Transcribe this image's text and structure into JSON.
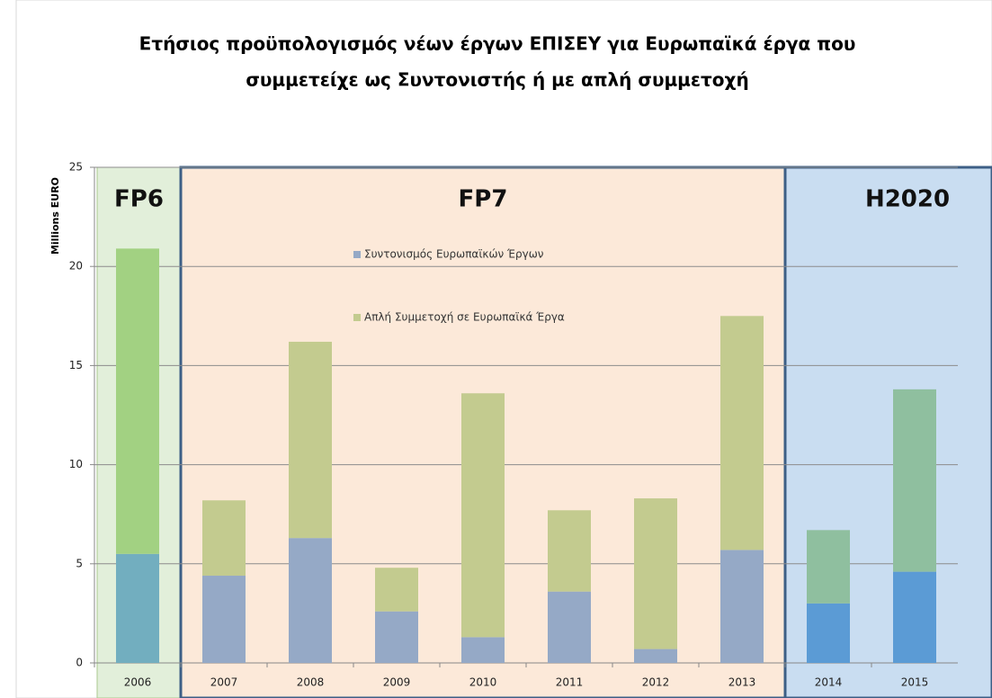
{
  "chart_data": {
    "type": "stacked-bar",
    "title": [
      "Ετήσιος προϋπολογισμός νέων έργων ΕΠΙΣΕΥ για Ευρωπαϊκά έργα που",
      "συμμετείχε ως Συντονιστής ή με απλή συμμετοχή"
    ],
    "y_label": "Millions  EURO",
    "categories": [
      "2006",
      "2007",
      "2008",
      "2009",
      "2010",
      "2011",
      "2012",
      "2013",
      "2014",
      "2015"
    ],
    "series": [
      {
        "name": "Συντονισμός Ευρωπαϊκών Έργων",
        "color": "#95a9c6",
        "colors": [
          "#72aebf",
          "#95a9c6",
          "#95a9c6",
          "#95a9c6",
          "#95a9c6",
          "#95a9c6",
          "#95a9c6",
          "#95a9c6",
          "#5b9bd5",
          "#5b9bd5"
        ],
        "values": [
          5.5,
          4.4,
          6.3,
          2.6,
          1.3,
          3.6,
          0.7,
          5.7,
          3.0,
          4.6
        ]
      },
      {
        "name": "Απλή Συμμετοχή  σε Ευρωπαϊκά Έργα",
        "color": "#c3cb8f",
        "colors": [
          "#a2d182",
          "#c3cb8f",
          "#c3cb8f",
          "#c3cb8f",
          "#c3cb8f",
          "#c3cb8f",
          "#c3cb8f",
          "#c3cb8f",
          "#8fbf9f",
          "#8fbf9f"
        ],
        "values": [
          15.4,
          3.8,
          9.9,
          2.2,
          12.3,
          4.1,
          7.6,
          11.8,
          3.7,
          9.2
        ]
      }
    ],
    "regions": [
      {
        "label": "FP6",
        "from": "2006",
        "to": "2006",
        "color": "#e2efda"
      },
      {
        "label": "FP7",
        "from": "2007",
        "to": "2013",
        "color": "#fce9d9"
      },
      {
        "label": "H2020",
        "from": "2014",
        "to": "2015",
        "color": "#c9ddf1"
      }
    ],
    "ylim": [
      0,
      25
    ],
    "yticks": [
      0,
      5,
      10,
      15,
      20,
      25
    ],
    "grid": true
  }
}
